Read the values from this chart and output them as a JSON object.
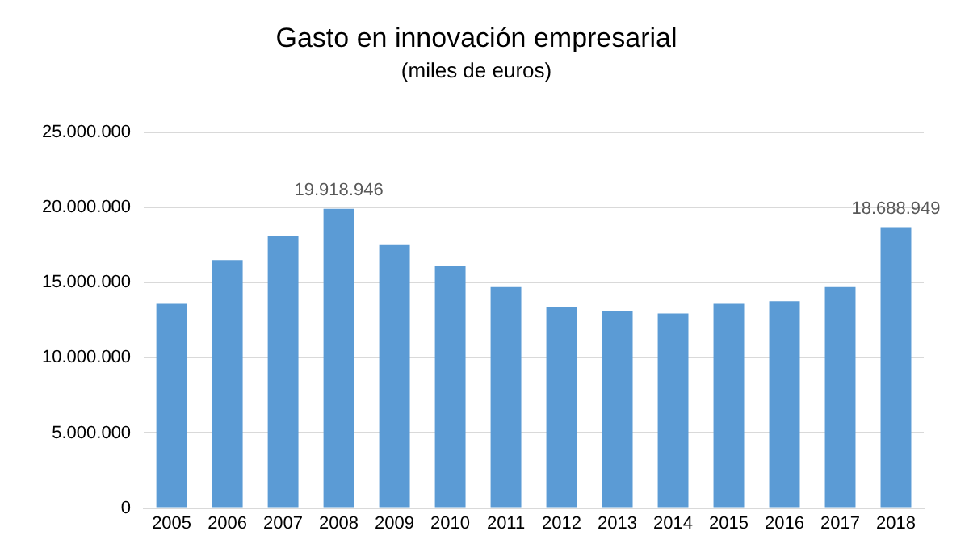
{
  "chart_data": {
    "type": "bar",
    "title": "Gasto en innovación empresarial",
    "subtitle": "(miles de euros)",
    "categories": [
      "2005",
      "2006",
      "2007",
      "2008",
      "2009",
      "2010",
      "2011",
      "2012",
      "2013",
      "2014",
      "2015",
      "2016",
      "2017",
      "2018"
    ],
    "values": [
      13590000,
      16500000,
      18080000,
      19918946,
      17550000,
      16090000,
      14710000,
      13360000,
      13140000,
      12950000,
      13590000,
      13770000,
      14710000,
      18688949
    ],
    "value_labels": [
      null,
      null,
      null,
      "19.918.946",
      null,
      null,
      null,
      null,
      null,
      null,
      null,
      null,
      null,
      "18.688.949"
    ],
    "color": "#5b9bd5",
    "ylim": [
      0,
      25000000
    ],
    "yticks": [
      {
        "value": 0,
        "label": "0"
      },
      {
        "value": 5000000,
        "label": "5.000.000"
      },
      {
        "value": 10000000,
        "label": "10.000.000"
      },
      {
        "value": 15000000,
        "label": "15.000.000"
      },
      {
        "value": 20000000,
        "label": "20.000.000"
      },
      {
        "value": 25000000,
        "label": "25.000.000"
      }
    ],
    "grid": "y",
    "legend": false
  }
}
